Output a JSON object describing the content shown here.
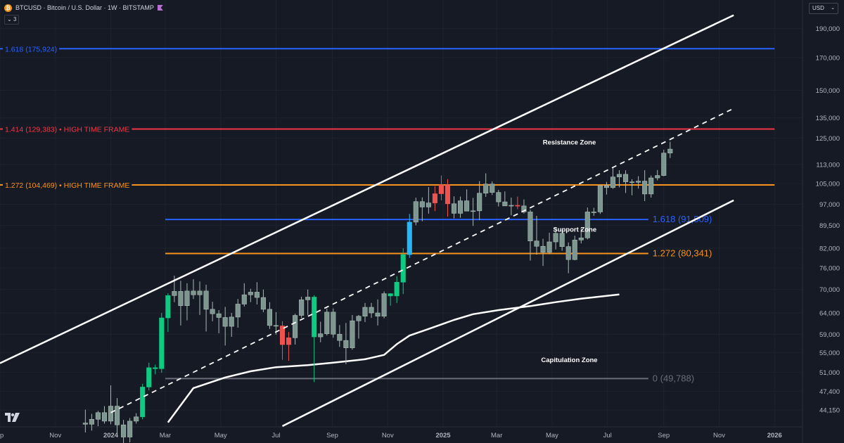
{
  "header": {
    "symbol": "BTCUSD · Bitcoin / U.S. Dollar · 1W · BITSTAMP",
    "indicator_count": "3",
    "currency": "USD",
    "icons": [
      "bitcoin-icon",
      "flag-icon",
      "chevron-down-icon",
      "tradingview-logo-icon"
    ]
  },
  "colors": {
    "background": "#161a25",
    "grid": "#1e222d",
    "bull": "#26a69a",
    "bear": "#ef5350",
    "green": "#0ecb81",
    "candle_body": "#7d9690",
    "blue": "#2962ff",
    "red": "#f23645",
    "orange": "#f7931a",
    "white": "#ffffff",
    "gray": "#6a6d78"
  },
  "chart_data": {
    "type": "candlestick",
    "title": "BTCUSD · Bitcoin / U.S. Dollar · 1W · BITSTAMP",
    "y_scale": "log",
    "y_range": [
      41500,
      212000
    ],
    "x_range": [
      "2023-09-01",
      "2026-01-31"
    ],
    "x_ticks": [
      {
        "label": "ep",
        "date": "2023-09-01"
      },
      {
        "label": "Nov",
        "date": "2023-11-01"
      },
      {
        "label": "2024",
        "date": "2024-01-01"
      },
      {
        "label": "Mar",
        "date": "2024-03-01"
      },
      {
        "label": "May",
        "date": "2024-05-01"
      },
      {
        "label": "Jul",
        "date": "2024-07-01"
      },
      {
        "label": "Sep",
        "date": "2024-09-01"
      },
      {
        "label": "Nov",
        "date": "2024-11-01"
      },
      {
        "label": "2025",
        "date": "2025-01-01"
      },
      {
        "label": "Mar",
        "date": "2025-03-01"
      },
      {
        "label": "May",
        "date": "2025-05-01"
      },
      {
        "label": "Jul",
        "date": "2025-07-01"
      },
      {
        "label": "Sep",
        "date": "2025-09-01"
      },
      {
        "label": "Nov",
        "date": "2025-11-01"
      },
      {
        "label": "2026",
        "date": "2026-01-01"
      }
    ],
    "y_ticks": [
      190000,
      170000,
      150000,
      135000,
      125000,
      113000,
      105000,
      97000,
      89500,
      82000,
      76000,
      70000,
      64000,
      59000,
      55000,
      51000,
      47400,
      44150
    ],
    "y_tick_labels": [
      "190,000",
      "170,000",
      "150,000",
      "135,000",
      "125,000",
      "113,000",
      "105,000",
      "97,000",
      "89,500",
      "82,000",
      "76,000",
      "70,000",
      "64,000",
      "59,000",
      "55,000",
      "51,000",
      "47,400",
      "44,150"
    ],
    "start_date": "2023-12-04",
    "candles": [
      [
        42000,
        44200,
        40500,
        41800
      ],
      [
        41800,
        43500,
        40800,
        42600
      ],
      [
        42600,
        44000,
        41500,
        43700
      ],
      [
        43700,
        44800,
        41900,
        42300
      ],
      [
        42300,
        48500,
        41800,
        44800
      ],
      [
        44800,
        46200,
        40200,
        41700
      ],
      [
        41700,
        42500,
        38600,
        39800
      ],
      [
        39800,
        42800,
        39000,
        42300
      ],
      [
        42300,
        43600,
        41900,
        43000
      ],
      [
        43000,
        48800,
        42600,
        48200
      ],
      [
        48200,
        52900,
        47600,
        51900
      ],
      [
        51900,
        52500,
        50600,
        51700
      ],
      [
        51700,
        64000,
        50900,
        62800
      ],
      [
        62800,
        69000,
        59500,
        68400
      ],
      [
        68400,
        73800,
        66700,
        69500
      ],
      [
        69500,
        72400,
        61000,
        65800
      ],
      [
        65800,
        71700,
        62200,
        69600
      ],
      [
        69600,
        72800,
        67500,
        68600
      ],
      [
        68600,
        72200,
        63500,
        69600
      ],
      [
        69600,
        71300,
        59600,
        64900
      ],
      [
        64900,
        66800,
        62000,
        63800
      ],
      [
        63800,
        64700,
        59200,
        62900
      ],
      [
        62900,
        65500,
        56500,
        60800
      ],
      [
        60800,
        64000,
        58400,
        63000
      ],
      [
        63000,
        67500,
        60500,
        66200
      ],
      [
        66200,
        71700,
        65600,
        68600
      ],
      [
        68600,
        70200,
        66700,
        69300
      ],
      [
        69300,
        72000,
        66100,
        67900
      ],
      [
        67900,
        70000,
        64200,
        64900
      ],
      [
        64900,
        66700,
        60200,
        61000
      ],
      [
        61000,
        64200,
        58900,
        60900
      ],
      [
        60900,
        62000,
        53500,
        56700
      ],
      [
        56700,
        59500,
        53300,
        58200
      ],
      [
        58200,
        63800,
        56700,
        63400
      ],
      [
        63400,
        68100,
        62800,
        67300
      ],
      [
        67300,
        70000,
        63500,
        68000
      ],
      [
        68000,
        68500,
        49100,
        58400
      ],
      [
        58400,
        61900,
        57200,
        59100
      ],
      [
        59100,
        65100,
        58700,
        64200
      ],
      [
        64200,
        65100,
        58200,
        59000
      ],
      [
        59000,
        61100,
        56200,
        57600
      ],
      [
        57600,
        61600,
        52600,
        56000
      ],
      [
        56000,
        63500,
        55600,
        62100
      ],
      [
        62100,
        63500,
        58000,
        63200
      ],
      [
        63200,
        66500,
        61800,
        65400
      ],
      [
        65400,
        66500,
        62800,
        64000
      ],
      [
        64000,
        67400,
        61000,
        63200
      ],
      [
        63200,
        69500,
        62700,
        68900
      ],
      [
        68900,
        69000,
        65800,
        68300
      ],
      [
        68300,
        73600,
        66500,
        72000
      ],
      [
        72000,
        82000,
        68800,
        80000
      ],
      [
        80000,
        93500,
        79000,
        90600
      ],
      [
        90600,
        99500,
        89500,
        98000
      ],
      [
        98000,
        99600,
        90900,
        96000
      ],
      [
        96000,
        103600,
        93600,
        97500
      ],
      [
        97500,
        104000,
        94500,
        101000
      ],
      [
        101000,
        108300,
        98500,
        104500
      ],
      [
        104500,
        106800,
        92500,
        97200
      ],
      [
        97200,
        100000,
        91900,
        93700
      ],
      [
        93700,
        99900,
        92100,
        98300
      ],
      [
        98300,
        102700,
        94900,
        94500
      ],
      [
        94500,
        99400,
        89300,
        94600
      ],
      [
        94600,
        106000,
        91300,
        101200
      ],
      [
        101200,
        109200,
        99800,
        104800
      ],
      [
        104800,
        105900,
        100500,
        101500
      ],
      [
        101500,
        102500,
        96200,
        97900
      ],
      [
        97900,
        101900,
        96600,
        96400
      ],
      [
        96400,
        99500,
        93000,
        96600
      ],
      [
        96600,
        99900,
        95200,
        96400
      ],
      [
        96400,
        98800,
        93600,
        94200
      ],
      [
        94200,
        95000,
        78200,
        84300
      ],
      [
        84300,
        92800,
        80000,
        82600
      ],
      [
        82600,
        85000,
        76600,
        80700
      ],
      [
        80700,
        87000,
        80100,
        84000
      ],
      [
        84000,
        88700,
        81600,
        86800
      ],
      [
        86800,
        88000,
        81200,
        82500
      ],
      [
        82500,
        83800,
        74500,
        78500
      ],
      [
        78500,
        86000,
        78300,
        84600
      ],
      [
        84600,
        88700,
        83500,
        85300
      ],
      [
        85300,
        95800,
        84800,
        94200
      ],
      [
        94200,
        95700,
        92800,
        94200
      ],
      [
        94200,
        104200,
        93500,
        104200
      ],
      [
        104200,
        105700,
        100700,
        103400
      ],
      [
        103400,
        111900,
        102900,
        107700
      ],
      [
        107700,
        110500,
        103500,
        108800
      ],
      [
        108800,
        110500,
        101300,
        105700
      ],
      [
        105700,
        106800,
        100400,
        105500
      ],
      [
        105500,
        108000,
        103000,
        106000
      ],
      [
        106000,
        110500,
        98200,
        100900
      ],
      [
        100900,
        108300,
        99500,
        107300
      ],
      [
        107300,
        110600,
        106300,
        108300
      ],
      [
        108300,
        119500,
        108000,
        118000
      ],
      [
        118000,
        123200,
        115800,
        119800
      ]
    ],
    "highlight_candles": {
      "9": "green",
      "10": "green",
      "11": "green",
      "12": "green",
      "13": "green",
      "31": "bear",
      "32": "bear",
      "36": "green",
      "48": "green",
      "49": "green",
      "50": "green",
      "51": "blue",
      "55": "bear",
      "56": "bear",
      "57": "bear",
      "68": "bear"
    },
    "moving_average": [
      [
        "2024-03-04",
        42100
      ],
      [
        "2024-04-01",
        48000
      ],
      [
        "2024-05-06",
        50000
      ],
      [
        "2024-06-03",
        51200
      ],
      [
        "2024-07-01",
        52000
      ],
      [
        "2024-08-05",
        52400
      ],
      [
        "2024-09-02",
        52900
      ],
      [
        "2024-10-07",
        53600
      ],
      [
        "2024-10-28",
        54500
      ],
      [
        "2024-11-11",
        56800
      ],
      [
        "2024-11-25",
        58700
      ],
      [
        "2024-12-16",
        60200
      ],
      [
        "2025-01-13",
        62300
      ],
      [
        "2025-02-03",
        63700
      ],
      [
        "2025-03-03",
        64700
      ],
      [
        "2025-04-07",
        65700
      ],
      [
        "2025-05-05",
        66700
      ],
      [
        "2025-06-02",
        67600
      ],
      [
        "2025-07-14",
        68700
      ]
    ],
    "channel_lines": [
      {
        "name": "upper-channel-line",
        "from": [
          "2023-09-01",
          52800
        ],
        "to": [
          "2025-11-17",
          200000
        ],
        "style": "solid"
      },
      {
        "name": "middle-channel-line",
        "from": [
          "2024-01-01",
          43700
        ],
        "to": [
          "2025-11-17",
          140000
        ],
        "style": "dashed"
      },
      {
        "name": "lower-channel-line",
        "from": [
          "2024-07-08",
          41500
        ],
        "to": [
          "2025-11-17",
          98500
        ],
        "style": "solid"
      }
    ],
    "levels": [
      {
        "name": "fib-1618-high",
        "value": 175924,
        "label": "1.618 (175,924)",
        "color": "blue",
        "from": "2023-09-01",
        "to": "2026-01-01",
        "label_pos": "left"
      },
      {
        "name": "fib-1414",
        "value": 129383,
        "label": "1.414 (129,383) • HIGH TIME FRAME",
        "color": "red",
        "from": "2023-09-01",
        "to": "2026-01-01",
        "label_pos": "left"
      },
      {
        "name": "fib-1272-high",
        "value": 104469,
        "label": "1.272 (104,469) • HIGH TIME FRAME",
        "color": "orange",
        "from": "2023-09-01",
        "to": "2026-01-01",
        "label_pos": "left"
      },
      {
        "name": "fib-1618-low",
        "value": 91509,
        "label": "1.618 (91,509)",
        "color": "blue",
        "from": "2024-03-01",
        "to": "2025-08-15",
        "label_pos": "right"
      },
      {
        "name": "fib-1272-low",
        "value": 80341,
        "label": "1.272 (80,341)",
        "color": "orange",
        "from": "2024-03-01",
        "to": "2025-08-15",
        "label_pos": "right"
      },
      {
        "name": "fib-zero",
        "value": 49788,
        "label": "0 (49,788)",
        "color": "gray",
        "from": "2024-03-01",
        "to": "2025-08-15",
        "label_pos": "right"
      }
    ],
    "zone_labels": [
      {
        "name": "resistance-zone-label",
        "text": "Resistance Zone",
        "date": "2025-05-20",
        "value": 122000
      },
      {
        "name": "support-zone-label",
        "text": "Support Zone",
        "date": "2025-05-26",
        "value": 87300
      },
      {
        "name": "capitulation-zone-label",
        "text": "Capitulation Zone",
        "date": "2025-05-20",
        "value": 53000
      }
    ]
  }
}
